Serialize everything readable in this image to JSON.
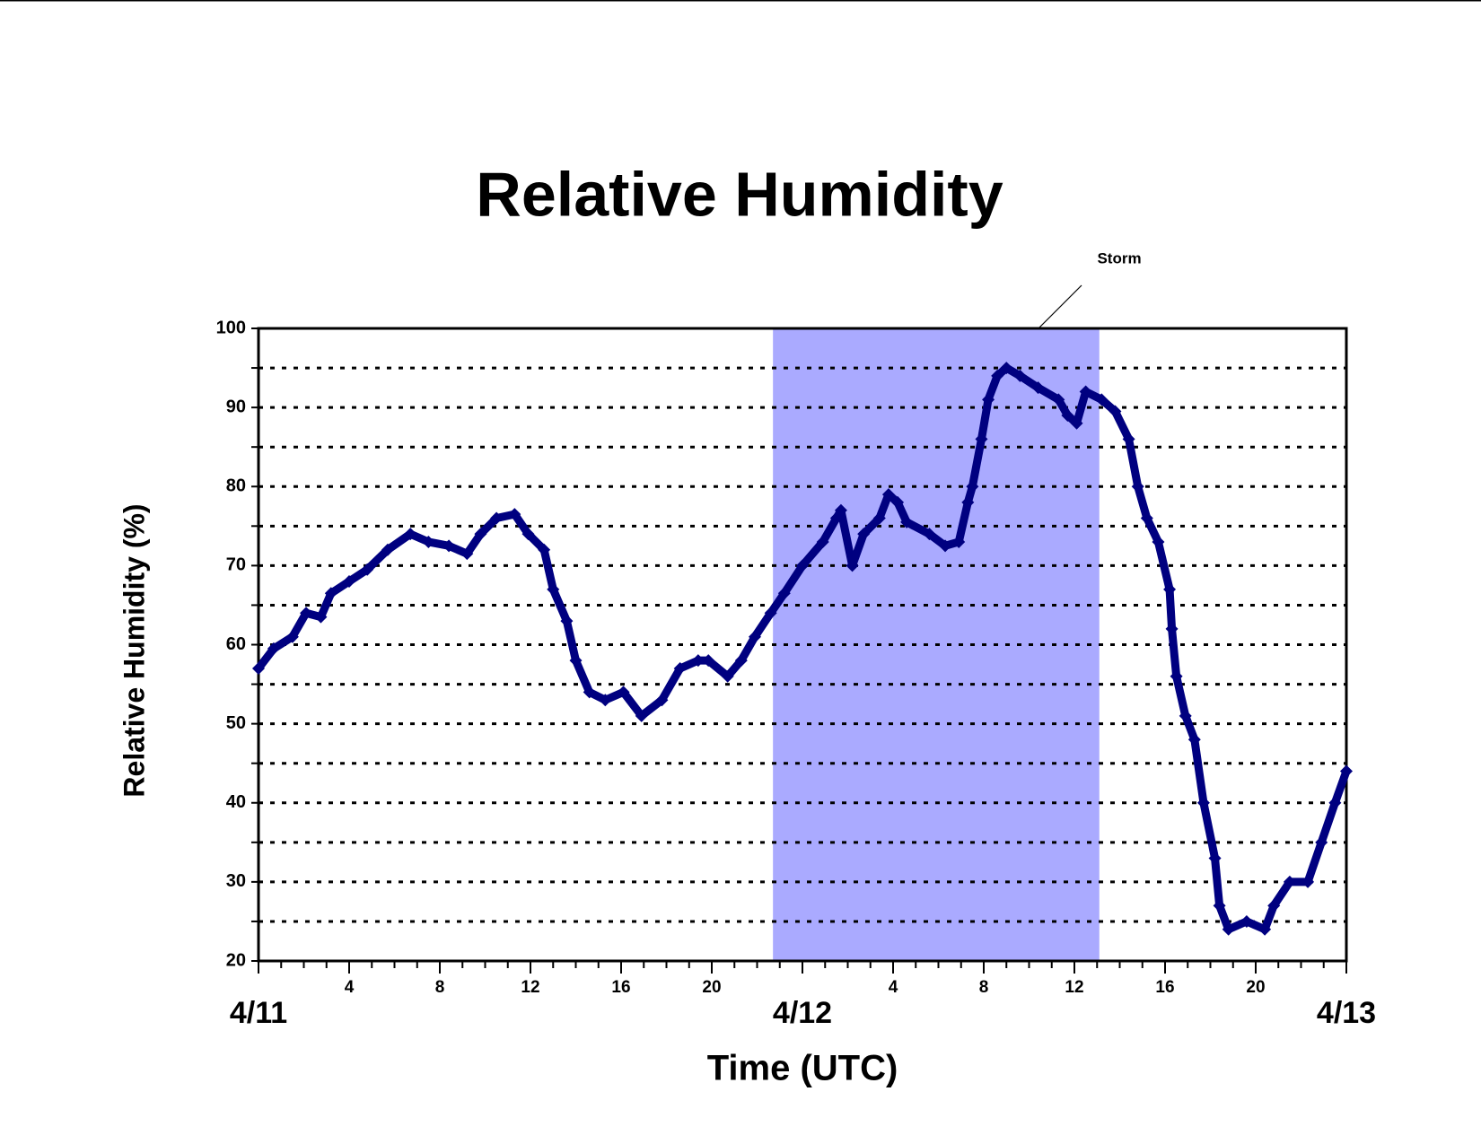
{
  "chart_data": {
    "type": "scatter",
    "title": "Relative Humidity",
    "xlabel": "Time (UTC)",
    "ylabel": "Relative Humidity (%)",
    "annotation": {
      "text": "Storm",
      "xlim": [
        22.7,
        37.1
      ],
      "color": "#aaaaff"
    },
    "series": [
      {
        "name": "Relative Humidity",
        "color": "#000080",
        "x": [
          0,
          0.67,
          1.5,
          2.1,
          2.75,
          3.2,
          4,
          4.8,
          5.7,
          6.7,
          7.5,
          8.4,
          9.2,
          9.8,
          10.5,
          11.3,
          11.9,
          12.6,
          13,
          13.6,
          14,
          14.6,
          15.3,
          16.1,
          16.9,
          17.8,
          18.6,
          19.4,
          19.85,
          20.7,
          21.3,
          21.9,
          22.6,
          23.2,
          24,
          24.9,
          25.5,
          25.7,
          26.2,
          26.7,
          27.4,
          27.8,
          28.2,
          28.6,
          29.6,
          30.3,
          30.9,
          31.3,
          31.5,
          31.9,
          32.2,
          32.6,
          33,
          33.6,
          34.4,
          35.3,
          35.7,
          36.1,
          36.5,
          37.2,
          37.8,
          38.4,
          38.8,
          39.2,
          39.7,
          40.2,
          40.3,
          40.5,
          40.9,
          41.3,
          41.7,
          42.2,
          42.4,
          42.8,
          43.6,
          44.4,
          44.8,
          45.5,
          46.3,
          46.9,
          47.5,
          48
        ],
        "values": [
          57,
          59.5,
          61,
          64,
          63.5,
          66.5,
          68,
          69.5,
          72,
          74,
          73,
          72.5,
          71.5,
          74,
          76,
          76.5,
          74,
          72,
          67,
          63,
          58,
          54,
          53,
          54,
          51,
          53,
          57,
          58,
          58,
          56,
          58,
          61,
          64,
          66.5,
          70,
          73,
          76,
          77,
          70,
          74,
          76,
          79,
          78,
          75.5,
          74,
          72.5,
          73,
          78,
          80,
          86,
          91,
          94,
          95,
          94,
          92.5,
          91,
          89,
          88,
          92,
          91,
          89.5,
          86,
          80,
          76,
          73,
          67,
          62,
          56,
          51,
          48,
          40,
          33,
          27,
          24,
          25,
          24,
          27,
          30,
          30,
          35,
          40,
          44
        ]
      }
    ],
    "xlim": [
      0,
      48
    ],
    "xticks": [
      {
        "value": 0,
        "label": "4/11"
      },
      4,
      8,
      12,
      16,
      20,
      {
        "value": 24,
        "label": "4/12"
      },
      {
        "value": 28,
        "label": "4"
      },
      {
        "value": 32,
        "label": "8"
      },
      {
        "value": 36,
        "label": "12"
      },
      {
        "value": 40,
        "label": "16"
      },
      {
        "value": 44,
        "label": "20"
      },
      {
        "value": 48,
        "label": "4/13"
      }
    ],
    "xminor": [
      0,
      1,
      2,
      3,
      4,
      5,
      6,
      7,
      8,
      9,
      10,
      11,
      12,
      13,
      14,
      15,
      16,
      17,
      18,
      19,
      20,
      21,
      22,
      23,
      24,
      25,
      26,
      27,
      28,
      29,
      30,
      31,
      32,
      33,
      34,
      35,
      36,
      37,
      38,
      39,
      40,
      41,
      42,
      43,
      44,
      45,
      46,
      47,
      48
    ],
    "ylim": [
      20,
      100
    ],
    "yticks": [
      20,
      30,
      40,
      50,
      60,
      70,
      80,
      90,
      100
    ],
    "yminor": [
      25,
      35,
      45,
      55,
      65,
      75,
      85,
      95
    ],
    "grid": true
  }
}
